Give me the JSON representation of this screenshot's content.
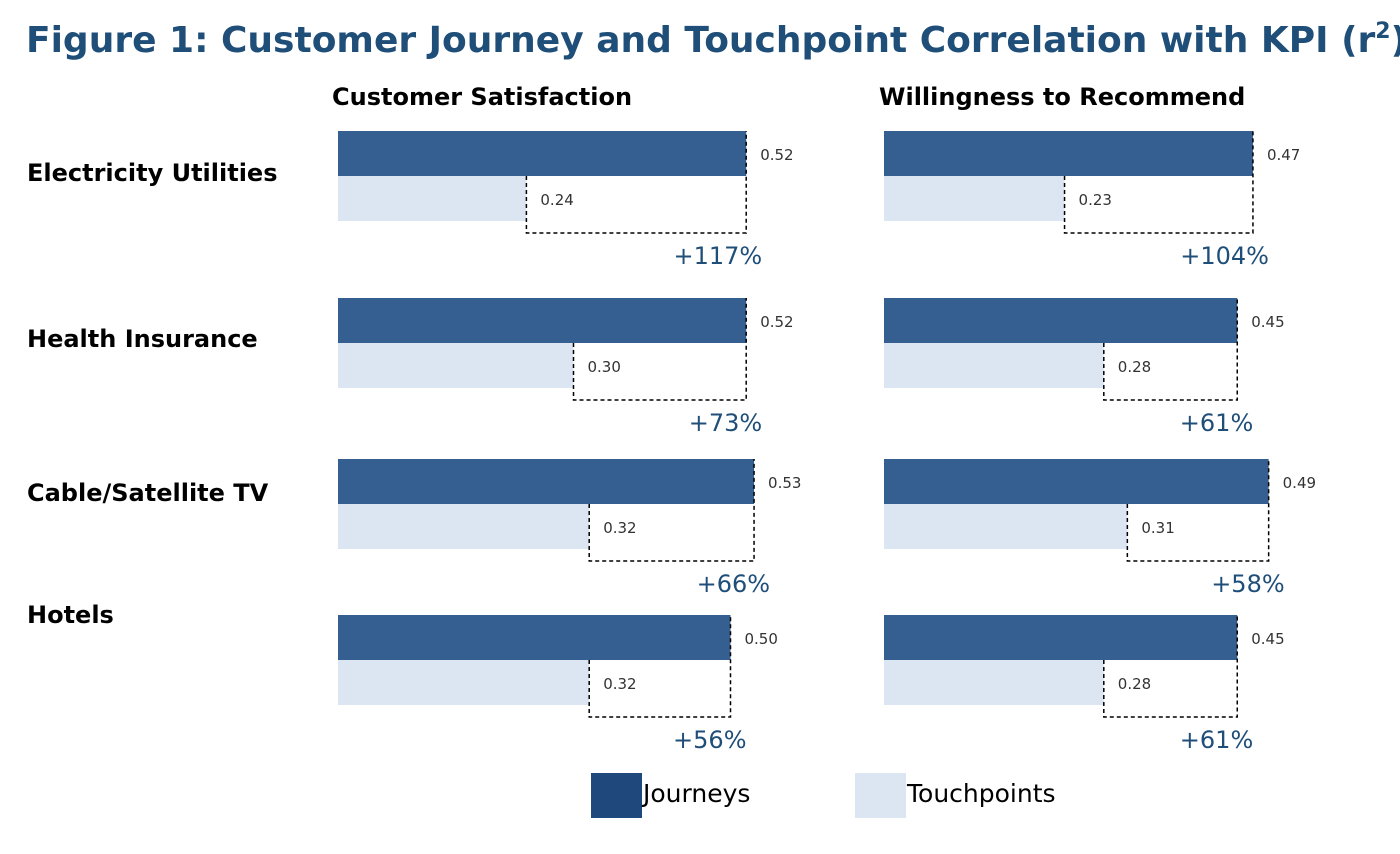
{
  "figure": {
    "title": "Figure 1: Customer Journey and Touchpoint Correlation with KPI (r",
    "title_sup": "2",
    "title_close": ")"
  },
  "chart_data": {
    "type": "bar",
    "orientation": "horizontal",
    "categories": [
      "Electricity Utilities",
      "Health Insurance",
      "Cable/Satellite TV",
      "Hotels"
    ],
    "panels": [
      {
        "title": "Customer Satisfaction",
        "series": [
          {
            "name": "Journeys",
            "values": [
              0.52,
              0.52,
              0.53,
              0.5
            ],
            "labels": [
              "0.52",
              "0.52",
              "0.53",
              "0.50"
            ]
          },
          {
            "name": "Touchpoints",
            "values": [
              0.24,
              0.3,
              0.32,
              0.32
            ],
            "labels": [
              "0.24",
              "0.30",
              "0.32",
              "0.32"
            ]
          }
        ],
        "annotations": [
          "+117%",
          "+73%",
          "+66%",
          "+56%"
        ]
      },
      {
        "title": "Willingness to Recommend",
        "series": [
          {
            "name": "Journeys",
            "values": [
              0.47,
              0.45,
              0.49,
              0.45
            ],
            "labels": [
              "0.47",
              "0.45",
              "0.49",
              "0.45"
            ]
          },
          {
            "name": "Touchpoints",
            "values": [
              0.23,
              0.28,
              0.31,
              0.28
            ],
            "labels": [
              "0.23",
              "0.28",
              "0.31",
              "0.28"
            ]
          }
        ],
        "annotations": [
          "+104%",
          "+61%",
          "+58%",
          "+61%"
        ]
      }
    ],
    "legend": {
      "position": "bottom",
      "items": [
        {
          "label": "Journeys",
          "color": "#1f497d"
        },
        {
          "label": "Touchpoints",
          "color": "#dce6f2"
        }
      ]
    },
    "colors": {
      "journeys": "#365f91",
      "touchpoints": "#dce6f2",
      "accent": "#1f4e79"
    }
  }
}
